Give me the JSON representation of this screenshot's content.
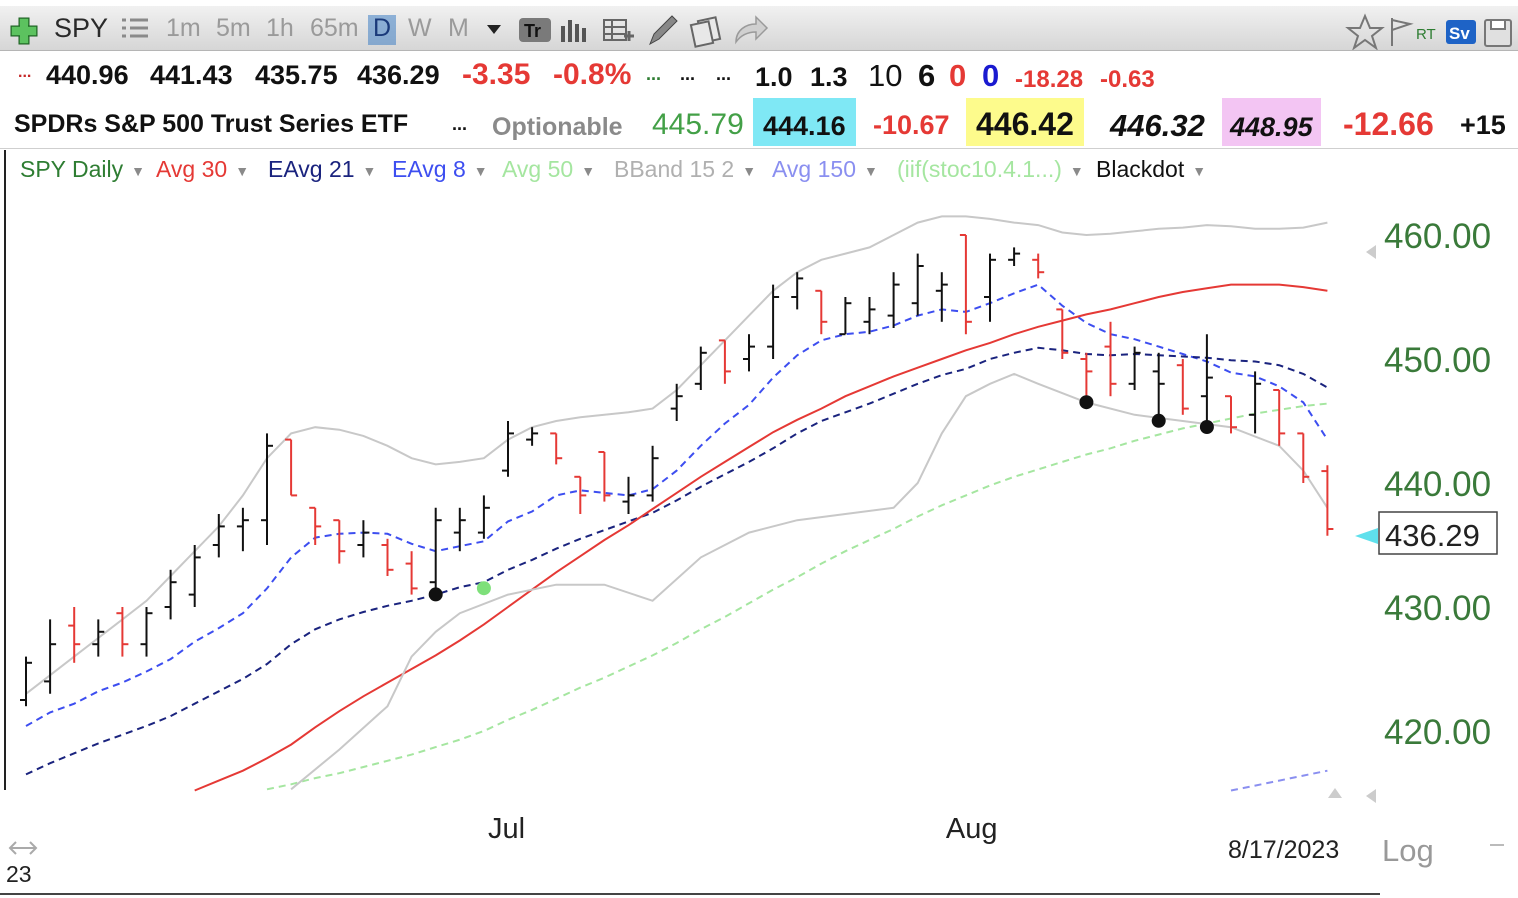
{
  "toolbar": {
    "symbol": "SPY",
    "intervals": [
      "1m",
      "5m",
      "1h",
      "65m",
      "D",
      "W",
      "M"
    ],
    "selected_interval": "D",
    "rt_label": "RT",
    "sv_label": "Sv"
  },
  "quote": {
    "row1": {
      "open": "440.96",
      "high": "441.43",
      "low": "435.75",
      "last": "436.29",
      "change": "-3.35",
      "change_pct": "-0.8%",
      "v1": "1.0",
      "v2": "1.3",
      "v3": "10",
      "v4": "6",
      "v5": "0",
      "v6": "0",
      "v7": "-18.28",
      "v8": "-0.63"
    },
    "row2": {
      "name": "SPDRs S&P 500 Trust Series ETF",
      "optionable": "Optionable",
      "p1": "445.79",
      "p2": "444.16",
      "p3": "-10.67",
      "p4": "446.42",
      "p5": "446.32",
      "p6": "448.95",
      "p7": "-12.66",
      "p8": "+15"
    }
  },
  "studies": [
    {
      "label": "SPY Daily",
      "color": "#2e7d32"
    },
    {
      "label": "Avg 30",
      "color": "#e53935"
    },
    {
      "label": "EAvg 21",
      "color": "#1a237e"
    },
    {
      "label": "EAvg 8",
      "color": "#3d4ef0"
    },
    {
      "label": "Avg 50",
      "color": "#a5e6a0"
    },
    {
      "label": "BBand 15 2",
      "color": "#b0b0b0"
    },
    {
      "label": "Avg 150",
      "color": "#8a8ff0"
    },
    {
      "label": "(iif(stoc10.4.1...)",
      "color": "#a5e6a0"
    },
    {
      "label": "Blackdot",
      "color": "#111111"
    }
  ],
  "chart_data": {
    "type": "line",
    "title": "SPY Daily",
    "ylim": [
      415,
      465
    ],
    "y_ticks": [
      420,
      430,
      440,
      450,
      460
    ],
    "y_tick_labels": [
      "420.00",
      "430.00",
      "440.00",
      "450.00",
      "460.00"
    ],
    "x_labels": [
      {
        "label": "Jul",
        "index": 20
      },
      {
        "label": "Aug",
        "index": 39
      }
    ],
    "partial_year_label": "23",
    "date_label": "8/17/2023",
    "scale_label": "Log",
    "last_price": "436.29",
    "bars": [
      {
        "o": 422.5,
        "h": 426.0,
        "l": 422.0,
        "c": 425.5,
        "dir": "up"
      },
      {
        "o": 424.0,
        "h": 429.0,
        "l": 423.0,
        "c": 427.0,
        "dir": "up"
      },
      {
        "o": 428.5,
        "h": 430.0,
        "l": 425.5,
        "c": 427.0,
        "dir": "down"
      },
      {
        "o": 427.0,
        "h": 429.0,
        "l": 426.0,
        "c": 428.0,
        "dir": "up"
      },
      {
        "o": 429.5,
        "h": 430.0,
        "l": 426.0,
        "c": 427.0,
        "dir": "down"
      },
      {
        "o": 427.0,
        "h": 430.0,
        "l": 426.0,
        "c": 429.5,
        "dir": "up"
      },
      {
        "o": 430.0,
        "h": 433.0,
        "l": 429.0,
        "c": 432.0,
        "dir": "up"
      },
      {
        "o": 431.0,
        "h": 435.0,
        "l": 430.0,
        "c": 434.0,
        "dir": "up"
      },
      {
        "o": 435.0,
        "h": 437.5,
        "l": 434.0,
        "c": 436.5,
        "dir": "up"
      },
      {
        "o": 436.5,
        "h": 438.0,
        "l": 434.5,
        "c": 437.0,
        "dir": "up"
      },
      {
        "o": 437.0,
        "h": 444.0,
        "l": 435.0,
        "c": 443.0,
        "dir": "up"
      },
      {
        "o": 443.5,
        "h": 443.5,
        "l": 439.0,
        "c": 439.0,
        "dir": "down"
      },
      {
        "o": 438.0,
        "h": 438.0,
        "l": 435.0,
        "c": 436.5,
        "dir": "down"
      },
      {
        "o": 437.0,
        "h": 437.0,
        "l": 433.5,
        "c": 434.5,
        "dir": "down"
      },
      {
        "o": 435.0,
        "h": 437.0,
        "l": 434.0,
        "c": 436.0,
        "dir": "up"
      },
      {
        "o": 435.0,
        "h": 435.5,
        "l": 432.5,
        "c": 433.0,
        "dir": "down"
      },
      {
        "o": 433.5,
        "h": 434.5,
        "l": 431.0,
        "c": 431.5,
        "dir": "down"
      },
      {
        "o": 432.0,
        "h": 438.0,
        "l": 431.5,
        "c": 437.0,
        "dir": "up"
      },
      {
        "o": 436.0,
        "h": 438.0,
        "l": 434.5,
        "c": 437.0,
        "dir": "up"
      },
      {
        "o": 436.0,
        "h": 439.0,
        "l": 435.5,
        "c": 438.0,
        "dir": "up"
      },
      {
        "o": 441.0,
        "h": 445.0,
        "l": 440.5,
        "c": 444.0,
        "dir": "up"
      },
      {
        "o": 443.5,
        "h": 444.5,
        "l": 443.0,
        "c": 444.0,
        "dir": "up"
      },
      {
        "o": 444.0,
        "h": 444.0,
        "l": 441.5,
        "c": 442.0,
        "dir": "down"
      },
      {
        "o": 440.5,
        "h": 440.5,
        "l": 437.5,
        "c": 439.0,
        "dir": "down"
      },
      {
        "o": 442.5,
        "h": 442.5,
        "l": 438.5,
        "c": 439.0,
        "dir": "down"
      },
      {
        "o": 438.5,
        "h": 440.5,
        "l": 437.5,
        "c": 439.0,
        "dir": "up"
      },
      {
        "o": 439.0,
        "h": 443.0,
        "l": 438.5,
        "c": 442.0,
        "dir": "up"
      },
      {
        "o": 446.0,
        "h": 448.0,
        "l": 445.0,
        "c": 447.0,
        "dir": "up"
      },
      {
        "o": 448.0,
        "h": 451.0,
        "l": 447.5,
        "c": 450.5,
        "dir": "up"
      },
      {
        "o": 451.5,
        "h": 451.5,
        "l": 448.0,
        "c": 449.0,
        "dir": "down"
      },
      {
        "o": 450.0,
        "h": 452.0,
        "l": 449.0,
        "c": 451.0,
        "dir": "up"
      },
      {
        "o": 451.0,
        "h": 456.0,
        "l": 450.0,
        "c": 455.0,
        "dir": "up"
      },
      {
        "o": 455.0,
        "h": 457.0,
        "l": 454.0,
        "c": 456.5,
        "dir": "up"
      },
      {
        "o": 455.5,
        "h": 455.5,
        "l": 452.0,
        "c": 453.0,
        "dir": "down"
      },
      {
        "o": 452.0,
        "h": 455.0,
        "l": 452.0,
        "c": 454.5,
        "dir": "up"
      },
      {
        "o": 453.0,
        "h": 455.0,
        "l": 452.0,
        "c": 454.0,
        "dir": "up"
      },
      {
        "o": 453.5,
        "h": 457.0,
        "l": 452.5,
        "c": 456.0,
        "dir": "up"
      },
      {
        "o": 454.5,
        "h": 458.5,
        "l": 453.5,
        "c": 457.5,
        "dir": "up"
      },
      {
        "o": 455.5,
        "h": 457.0,
        "l": 453.0,
        "c": 456.0,
        "dir": "up"
      },
      {
        "o": 460.0,
        "h": 460.0,
        "l": 452.0,
        "c": 453.0,
        "dir": "down"
      },
      {
        "o": 455.0,
        "h": 458.5,
        "l": 453.0,
        "c": 458.0,
        "dir": "up"
      },
      {
        "o": 458.0,
        "h": 459.0,
        "l": 457.5,
        "c": 458.5,
        "dir": "up"
      },
      {
        "o": 458.0,
        "h": 458.5,
        "l": 456.5,
        "c": 457.0,
        "dir": "down"
      },
      {
        "o": 454.0,
        "h": 454.0,
        "l": 450.0,
        "c": 450.5,
        "dir": "down"
      },
      {
        "o": 450.0,
        "h": 450.5,
        "l": 447.0,
        "c": 449.0,
        "dir": "down"
      },
      {
        "o": 451.0,
        "h": 453.0,
        "l": 447.0,
        "c": 448.0,
        "dir": "down"
      },
      {
        "o": 448.0,
        "h": 451.0,
        "l": 447.5,
        "c": 450.5,
        "dir": "up"
      },
      {
        "o": 449.0,
        "h": 450.5,
        "l": 445.5,
        "c": 448.0,
        "dir": "up"
      },
      {
        "o": 449.5,
        "h": 450.0,
        "l": 445.5,
        "c": 446.0,
        "dir": "down"
      },
      {
        "o": 447.0,
        "h": 452.0,
        "l": 445.0,
        "c": 448.5,
        "dir": "up"
      },
      {
        "o": 447.0,
        "h": 447.0,
        "l": 444.0,
        "c": 444.5,
        "dir": "down"
      },
      {
        "o": 445.5,
        "h": 449.0,
        "l": 444.0,
        "c": 448.0,
        "dir": "up"
      },
      {
        "o": 447.5,
        "h": 447.5,
        "l": 443.0,
        "c": 444.0,
        "dir": "down"
      },
      {
        "o": 444.0,
        "h": 444.0,
        "l": 440.0,
        "c": 440.5,
        "dir": "down"
      },
      {
        "o": 440.96,
        "h": 441.43,
        "l": 435.75,
        "c": 436.29,
        "dir": "down"
      }
    ],
    "series": [
      {
        "name": "EAvg 8",
        "style": "dashed",
        "color": "#3d4ef0",
        "values": [
          420.4,
          421.5,
          422.2,
          423.2,
          423.9,
          424.8,
          425.8,
          427.2,
          428.3,
          429.5,
          431.5,
          434.0,
          435.6,
          435.9,
          436.0,
          435.9,
          435.1,
          434.5,
          434.9,
          435.3,
          436.9,
          437.7,
          439.0,
          439.4,
          439.2,
          439.0,
          439.5,
          441.0,
          443.0,
          444.8,
          446.3,
          448.5,
          450.3,
          451.5,
          452.0,
          452.2,
          452.7,
          453.5,
          454.0,
          453.8,
          454.5,
          455.3,
          456.0,
          454.3,
          452.9,
          452.0,
          451.6,
          451.0,
          450.4,
          449.8,
          448.9,
          448.6,
          447.8,
          446.5,
          443.5
        ]
      },
      {
        "name": "EAvg 21",
        "style": "dashed",
        "color": "#1a237e",
        "values": [
          416.5,
          417.4,
          418.2,
          419.0,
          419.7,
          420.4,
          421.2,
          422.2,
          423.2,
          424.2,
          425.4,
          427.0,
          428.2,
          429.0,
          429.6,
          430.1,
          430.5,
          431.0,
          431.6,
          432.0,
          433.0,
          433.8,
          434.7,
          435.5,
          436.2,
          436.9,
          437.6,
          438.6,
          439.7,
          440.7,
          441.7,
          442.8,
          444.0,
          445.0,
          445.7,
          446.4,
          447.2,
          448.0,
          448.7,
          449.2,
          450.0,
          450.5,
          450.9,
          450.7,
          450.4,
          450.3,
          450.4,
          450.3,
          450.2,
          450.1,
          449.9,
          449.8,
          449.5,
          448.8,
          447.7
        ]
      },
      {
        "name": "Avg 30",
        "style": "solid",
        "color": "#e53935",
        "values": [
          null,
          null,
          null,
          null,
          null,
          null,
          null,
          415.2,
          416.0,
          416.8,
          417.8,
          418.9,
          420.3,
          421.6,
          422.8,
          423.9,
          425.0,
          426.1,
          427.3,
          428.6,
          430.0,
          431.4,
          432.8,
          434.1,
          435.4,
          436.6,
          437.9,
          439.2,
          440.5,
          441.7,
          442.9,
          444.1,
          445.1,
          446.0,
          447.0,
          447.8,
          448.6,
          449.3,
          450.0,
          450.7,
          451.3,
          452.0,
          452.6,
          453.1,
          453.6,
          454.0,
          454.5,
          455.0,
          455.4,
          455.7,
          456.0,
          456.0,
          456.0,
          455.8,
          455.5
        ]
      },
      {
        "name": "Avg 50",
        "style": "dashed",
        "color": "#a5e6a0",
        "values": [
          null,
          null,
          null,
          null,
          null,
          null,
          null,
          null,
          null,
          null,
          415.3,
          415.7,
          416.2,
          416.6,
          417.1,
          417.6,
          418.1,
          418.7,
          419.3,
          420.0,
          420.9,
          421.7,
          422.6,
          423.5,
          424.3,
          425.2,
          426.1,
          427.1,
          428.2,
          429.2,
          430.3,
          431.4,
          432.4,
          433.5,
          434.5,
          435.4,
          436.3,
          437.3,
          438.2,
          439.0,
          439.8,
          440.5,
          441.1,
          441.7,
          442.3,
          442.8,
          443.4,
          443.9,
          444.4,
          444.8,
          445.2,
          445.6,
          445.9,
          446.2,
          446.4
        ]
      },
      {
        "name": "Avg 150",
        "style": "dashed",
        "color": "#8a8ff0",
        "values": [
          null,
          null,
          null,
          null,
          null,
          null,
          null,
          null,
          null,
          null,
          null,
          null,
          null,
          null,
          null,
          null,
          null,
          null,
          null,
          null,
          null,
          null,
          null,
          null,
          null,
          null,
          null,
          null,
          null,
          null,
          null,
          null,
          null,
          null,
          null,
          null,
          null,
          null,
          null,
          null,
          null,
          null,
          null,
          null,
          null,
          null,
          null,
          null,
          null,
          null,
          415.2,
          415.6,
          416.0,
          416.4,
          416.8
        ]
      },
      {
        "name": "BBand upper",
        "style": "solid",
        "color": "#c8c8c8",
        "values": [
          423.0,
          424.5,
          426.0,
          427.5,
          429.0,
          430.5,
          432.5,
          434.5,
          436.5,
          439.0,
          442.0,
          444.0,
          444.5,
          444.3,
          443.8,
          443.0,
          442.0,
          441.5,
          441.7,
          442.0,
          443.5,
          444.5,
          445.0,
          445.3,
          445.5,
          445.7,
          446.0,
          447.5,
          449.5,
          451.5,
          453.5,
          455.5,
          457.0,
          458.0,
          458.5,
          459.0,
          460.0,
          461.0,
          461.5,
          461.5,
          461.3,
          461.0,
          460.8,
          460.2,
          460.0,
          460.1,
          460.3,
          460.5,
          460.6,
          460.8,
          460.7,
          460.5,
          460.5,
          460.6,
          461.0
        ]
      },
      {
        "name": "BBand lower",
        "style": "solid",
        "color": "#c8c8c8",
        "values": [
          null,
          null,
          null,
          null,
          null,
          null,
          null,
          null,
          null,
          null,
          null,
          null,
          null,
          null,
          null,
          null,
          null,
          null,
          null,
          null,
          null,
          null,
          null,
          null,
          null,
          null,
          null,
          null,
          null,
          null,
          null,
          null,
          null,
          null,
          null,
          null,
          null,
          null,
          null,
          null,
          null,
          null,
          null,
          null,
          null,
          null,
          null,
          null,
          null,
          null,
          null,
          null,
          null,
          null,
          null
        ]
      }
    ],
    "bband_lower_visible": [
      [
        11,
        415.3
      ],
      [
        13,
        418.5
      ],
      [
        15,
        422.0
      ],
      [
        16,
        426.0
      ],
      [
        17,
        428.0
      ],
      [
        18,
        429.5
      ],
      [
        20,
        431.0
      ],
      [
        22,
        431.8
      ],
      [
        24,
        431.8
      ],
      [
        26,
        430.5
      ],
      [
        28,
        434.0
      ],
      [
        30,
        436.0
      ],
      [
        32,
        437.0
      ],
      [
        34,
        437.5
      ],
      [
        36,
        438.0
      ],
      [
        37,
        440.0
      ],
      [
        38,
        444.0
      ],
      [
        39,
        447.0
      ],
      [
        40,
        448.0
      ],
      [
        41,
        448.8
      ],
      [
        42,
        448.0
      ],
      [
        44,
        446.5
      ],
      [
        46,
        445.5
      ],
      [
        48,
        445.0
      ],
      [
        50,
        444.5
      ],
      [
        52,
        443.0
      ],
      [
        53,
        441.0
      ],
      [
        54,
        438.0
      ]
    ],
    "blackdots": [
      17,
      44,
      47,
      49
    ],
    "green_dots": [
      19
    ]
  }
}
